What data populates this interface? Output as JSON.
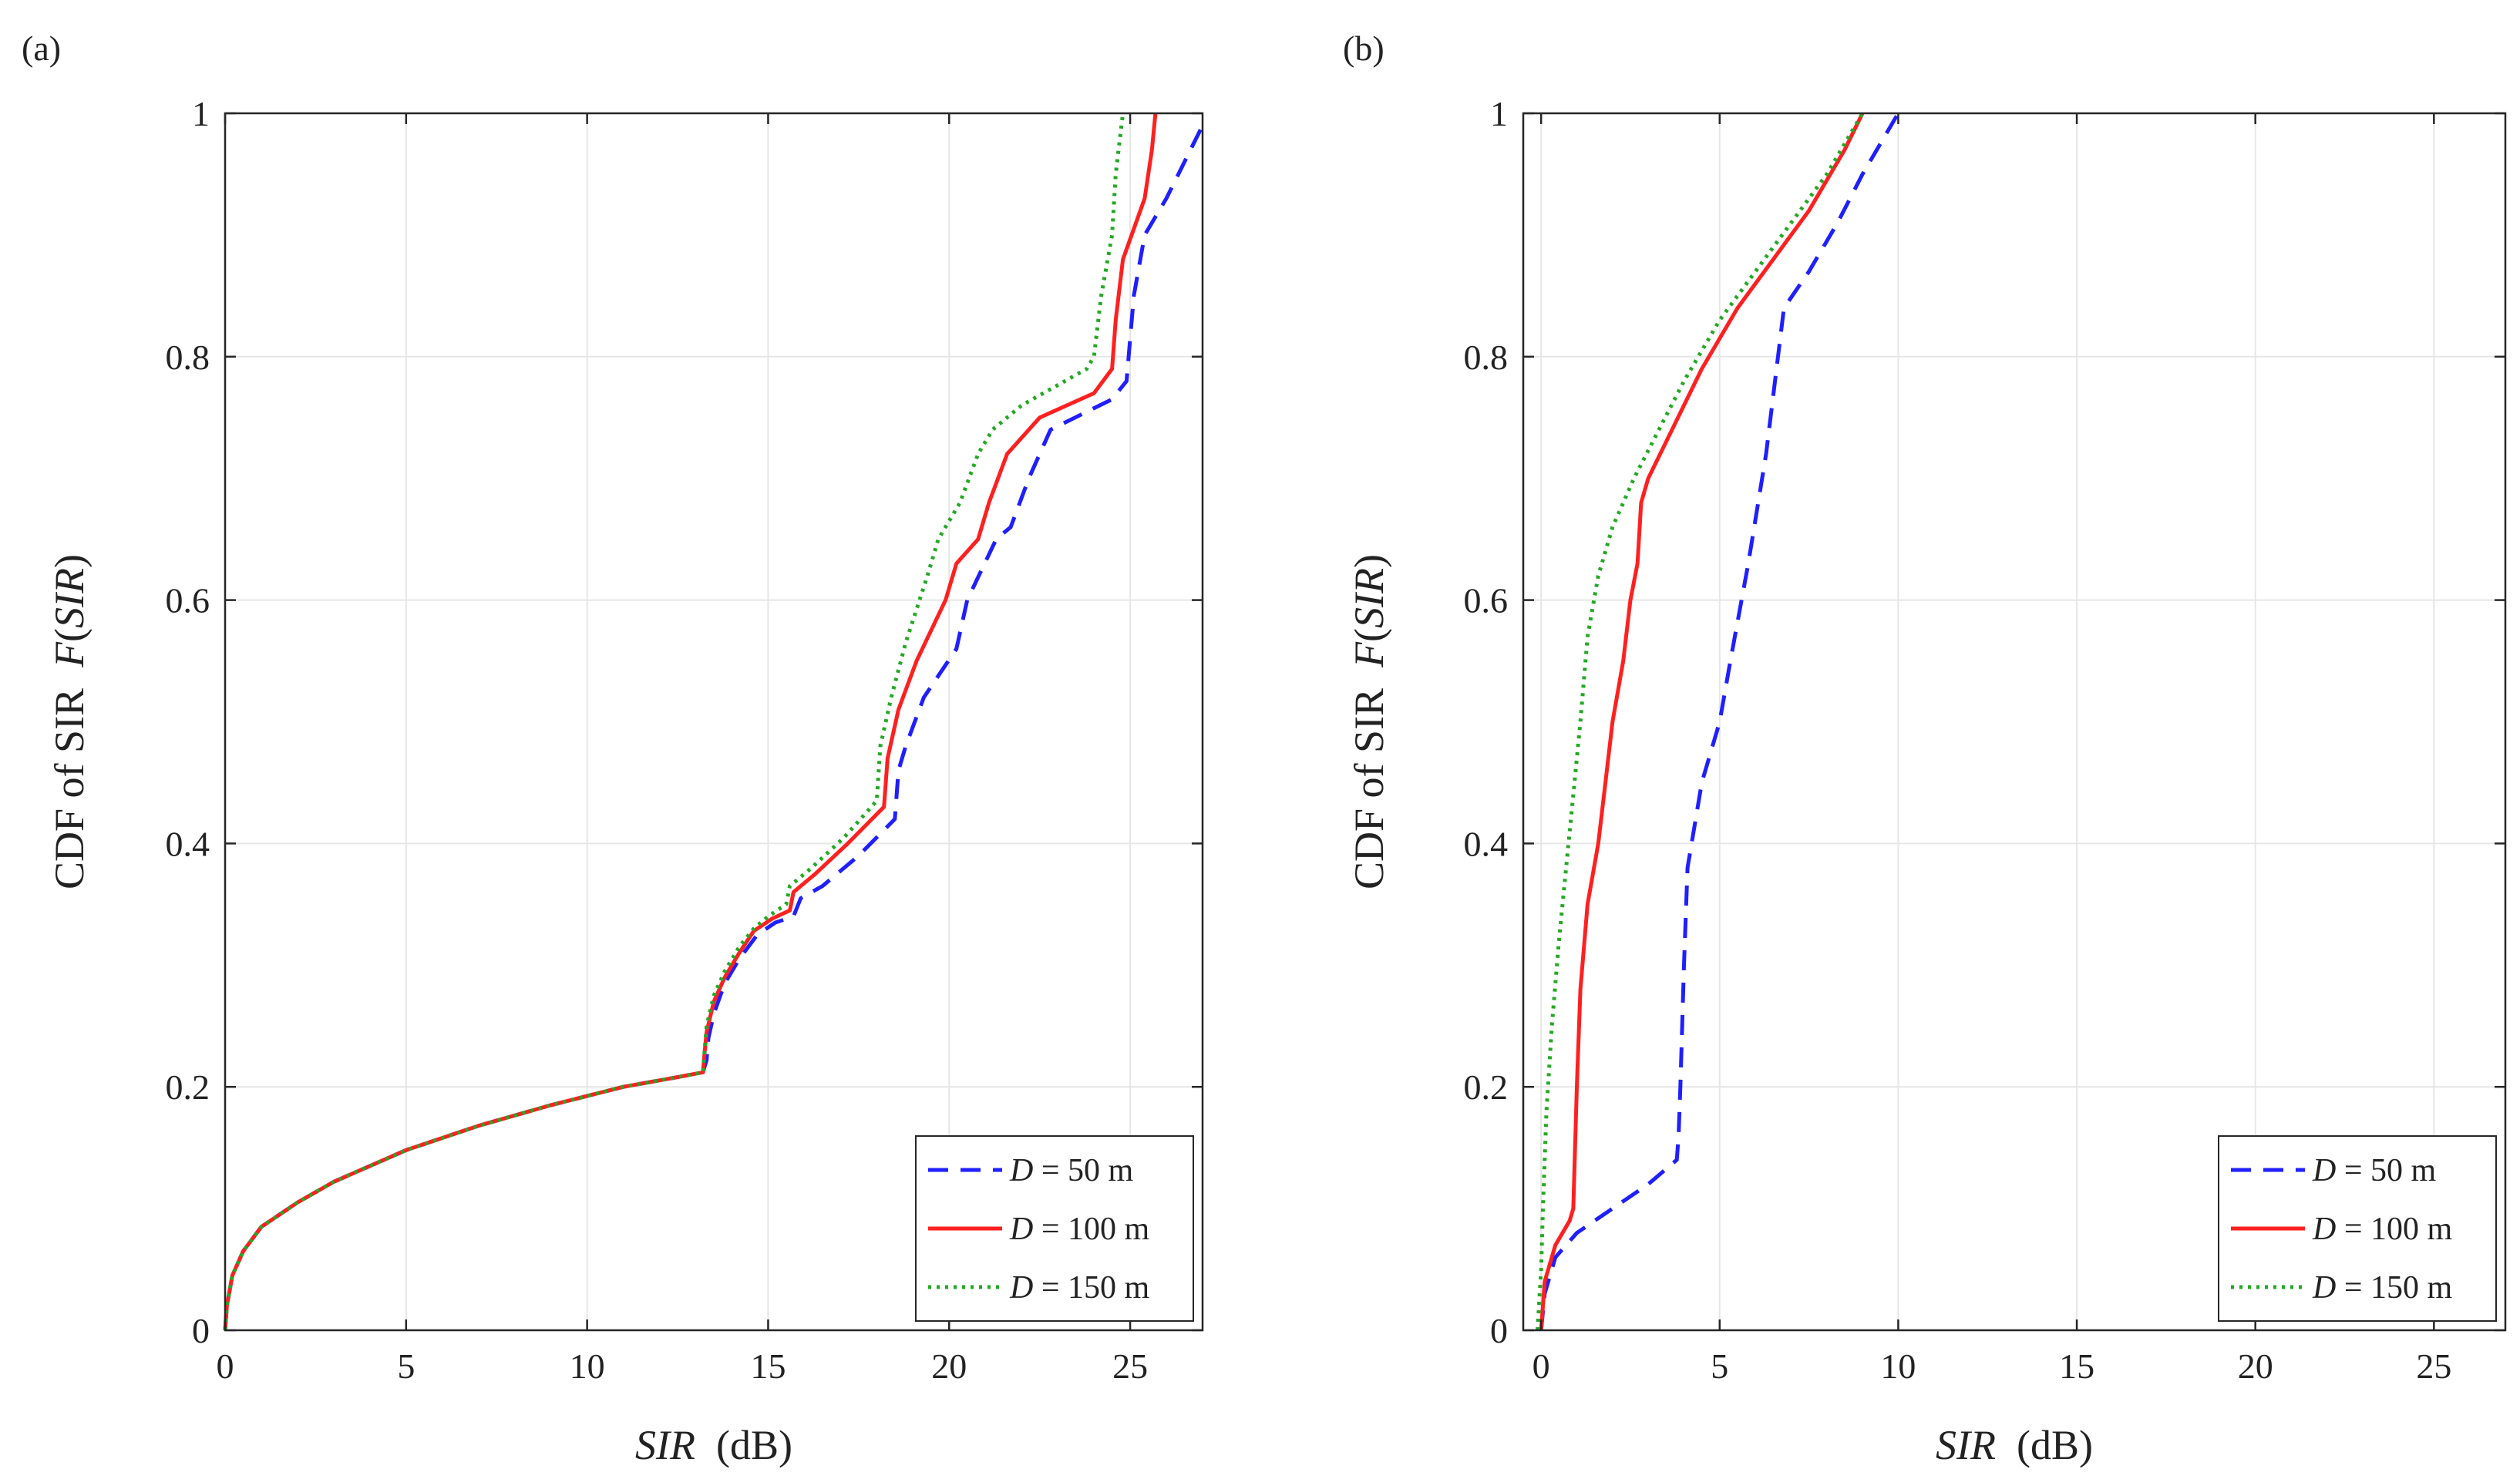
{
  "chart_data": [
    {
      "type": "line",
      "panel_label": "(a)",
      "title": "",
      "xlabel": "SIR",
      "xlabel_unit": "(dB)",
      "ylabel": "CDF of SIR",
      "ylabel_func": "F(SIR)",
      "xlim": [
        0,
        27
      ],
      "ylim": [
        0,
        1
      ],
      "xticks": [
        0,
        5,
        10,
        15,
        20,
        25
      ],
      "yticks": [
        0,
        0.2,
        0.4,
        0.6,
        0.8,
        1
      ],
      "ytick_labels": [
        "0",
        "0.2",
        "0.4",
        "0.6",
        "0.8",
        "1"
      ],
      "grid": true,
      "legend_position": "bottom-right",
      "series": [
        {
          "name": "D =   50 m",
          "legend_d": "D",
          "legend_rest": " =   50 m",
          "color": "#1f1fff",
          "style": "dashed",
          "x": [
            0,
            0.05,
            0.2,
            0.5,
            1,
            2,
            3,
            5,
            7,
            9,
            11,
            12.5,
            13.2,
            13.3,
            13.35,
            13.5,
            13.8,
            14.2,
            14.7,
            15.2,
            15.7,
            15.9,
            16.5,
            17.5,
            18.5,
            18.6,
            18.8,
            19.3,
            20.2,
            20.5,
            21.3,
            21.7,
            22.2,
            22.8,
            24.5,
            24.9,
            25.1,
            25.4,
            26.0,
            27.0
          ],
          "y": [
            0,
            0.02,
            0.045,
            0.065,
            0.085,
            0.105,
            0.122,
            0.148,
            0.168,
            0.185,
            0.2,
            0.208,
            0.212,
            0.222,
            0.24,
            0.26,
            0.285,
            0.305,
            0.325,
            0.335,
            0.34,
            0.355,
            0.365,
            0.39,
            0.42,
            0.46,
            0.48,
            0.52,
            0.56,
            0.6,
            0.65,
            0.66,
            0.7,
            0.74,
            0.765,
            0.78,
            0.85,
            0.9,
            0.93,
            0.99
          ]
        },
        {
          "name": "D = 100 m",
          "legend_d": "D",
          "legend_rest": " = 100 m",
          "color": "#ff2020",
          "style": "solid",
          "x": [
            0,
            0.05,
            0.2,
            0.5,
            1,
            2,
            3,
            5,
            7,
            9,
            11,
            12.5,
            13.2,
            13.25,
            13.3,
            13.5,
            13.8,
            14.2,
            14.6,
            15.1,
            15.6,
            15.7,
            16.3,
            17.2,
            18.2,
            18.3,
            18.6,
            19.1,
            19.9,
            20.2,
            20.8,
            21.1,
            21.6,
            22.5,
            24.0,
            24.5,
            24.6,
            24.8,
            25.4,
            25.6,
            25.7
          ],
          "y": [
            0,
            0.02,
            0.045,
            0.065,
            0.085,
            0.105,
            0.122,
            0.148,
            0.168,
            0.185,
            0.2,
            0.208,
            0.212,
            0.23,
            0.245,
            0.27,
            0.29,
            0.31,
            0.328,
            0.338,
            0.345,
            0.36,
            0.375,
            0.4,
            0.43,
            0.47,
            0.51,
            0.55,
            0.6,
            0.63,
            0.65,
            0.68,
            0.72,
            0.75,
            0.77,
            0.79,
            0.83,
            0.88,
            0.93,
            0.97,
            1.0
          ]
        },
        {
          "name": "D = 150 m",
          "legend_d": "D",
          "legend_rest": " = 150 m",
          "color": "#22aa22",
          "style": "dotted",
          "x": [
            0,
            0.05,
            0.2,
            0.5,
            1,
            2,
            3,
            5,
            7,
            9,
            11,
            12.5,
            13.2,
            13.25,
            13.3,
            13.5,
            13.8,
            14.2,
            14.6,
            15.0,
            15.5,
            15.6,
            16.2,
            17.1,
            18.0,
            18.1,
            18.4,
            18.8,
            19.4,
            19.7,
            20.3,
            20.8,
            21.2,
            22.0,
            23.8,
            24.0,
            24.2,
            24.5,
            24.6,
            24.8
          ],
          "y": [
            0,
            0.02,
            0.045,
            0.065,
            0.085,
            0.105,
            0.122,
            0.148,
            0.168,
            0.185,
            0.2,
            0.208,
            0.212,
            0.232,
            0.25,
            0.275,
            0.295,
            0.315,
            0.33,
            0.34,
            0.35,
            0.365,
            0.38,
            0.405,
            0.435,
            0.48,
            0.52,
            0.565,
            0.62,
            0.65,
            0.68,
            0.72,
            0.74,
            0.76,
            0.79,
            0.8,
            0.85,
            0.9,
            0.95,
            1.0
          ]
        }
      ]
    },
    {
      "type": "line",
      "panel_label": "(b)",
      "title": "",
      "xlabel": "SIR",
      "xlabel_unit": "(dB)",
      "ylabel": "CDF of SIR",
      "ylabel_func": "F(SIR)",
      "xlim": [
        -0.5,
        27
      ],
      "ylim": [
        0,
        1
      ],
      "xticks": [
        0,
        5,
        10,
        15,
        20,
        25
      ],
      "yticks": [
        0,
        0.2,
        0.4,
        0.6,
        0.8,
        1
      ],
      "ytick_labels": [
        "0",
        "0.2",
        "0.4",
        "0.6",
        "0.8",
        "1"
      ],
      "grid": true,
      "legend_position": "bottom-right",
      "series": [
        {
          "name": "D =   50 m",
          "legend_d": "D",
          "legend_rest": " =   50 m",
          "color": "#1f1fff",
          "style": "dashed",
          "x": [
            0,
            0.1,
            0.4,
            1.0,
            2.0,
            3.0,
            3.8,
            3.85,
            3.9,
            4.0,
            4.1,
            4.5,
            5.0,
            5.3,
            5.8,
            6.3,
            6.8,
            7.5,
            8.3,
            9.0,
            10.0
          ],
          "y": [
            0,
            0.03,
            0.06,
            0.08,
            0.1,
            0.12,
            0.14,
            0.16,
            0.2,
            0.3,
            0.38,
            0.45,
            0.5,
            0.55,
            0.63,
            0.72,
            0.84,
            0.87,
            0.91,
            0.95,
            1.0
          ]
        },
        {
          "name": "D = 100 m",
          "legend_d": "D",
          "legend_rest": " = 100 m",
          "color": "#ff2020",
          "style": "solid",
          "x": [
            0,
            0.1,
            0.4,
            0.8,
            0.9,
            1.0,
            1.1,
            1.3,
            1.6,
            1.8,
            2.0,
            2.3,
            2.5,
            2.7,
            2.8,
            3.0,
            3.5,
            4.5,
            5.5,
            6.5,
            7.5,
            8.5,
            9.0
          ],
          "y": [
            0,
            0.04,
            0.07,
            0.09,
            0.1,
            0.2,
            0.28,
            0.35,
            0.4,
            0.45,
            0.5,
            0.55,
            0.6,
            0.63,
            0.68,
            0.7,
            0.73,
            0.79,
            0.84,
            0.88,
            0.92,
            0.97,
            1.0
          ]
        },
        {
          "name": "D = 150 m",
          "legend_d": "D",
          "legend_rest": " = 150 m",
          "color": "#22aa22",
          "style": "dotted",
          "x": [
            -0.1,
            0,
            0.05,
            0.15,
            0.3,
            0.5,
            0.7,
            0.9,
            1.1,
            1.3,
            1.6,
            2.0,
            2.6,
            3.3,
            4.0,
            5.0,
            6.0,
            7.0,
            8.0,
            9.0
          ],
          "y": [
            0,
            0.05,
            0.1,
            0.18,
            0.25,
            0.32,
            0.38,
            0.44,
            0.5,
            0.57,
            0.62,
            0.66,
            0.7,
            0.74,
            0.78,
            0.83,
            0.87,
            0.91,
            0.95,
            1.0
          ]
        }
      ]
    }
  ]
}
